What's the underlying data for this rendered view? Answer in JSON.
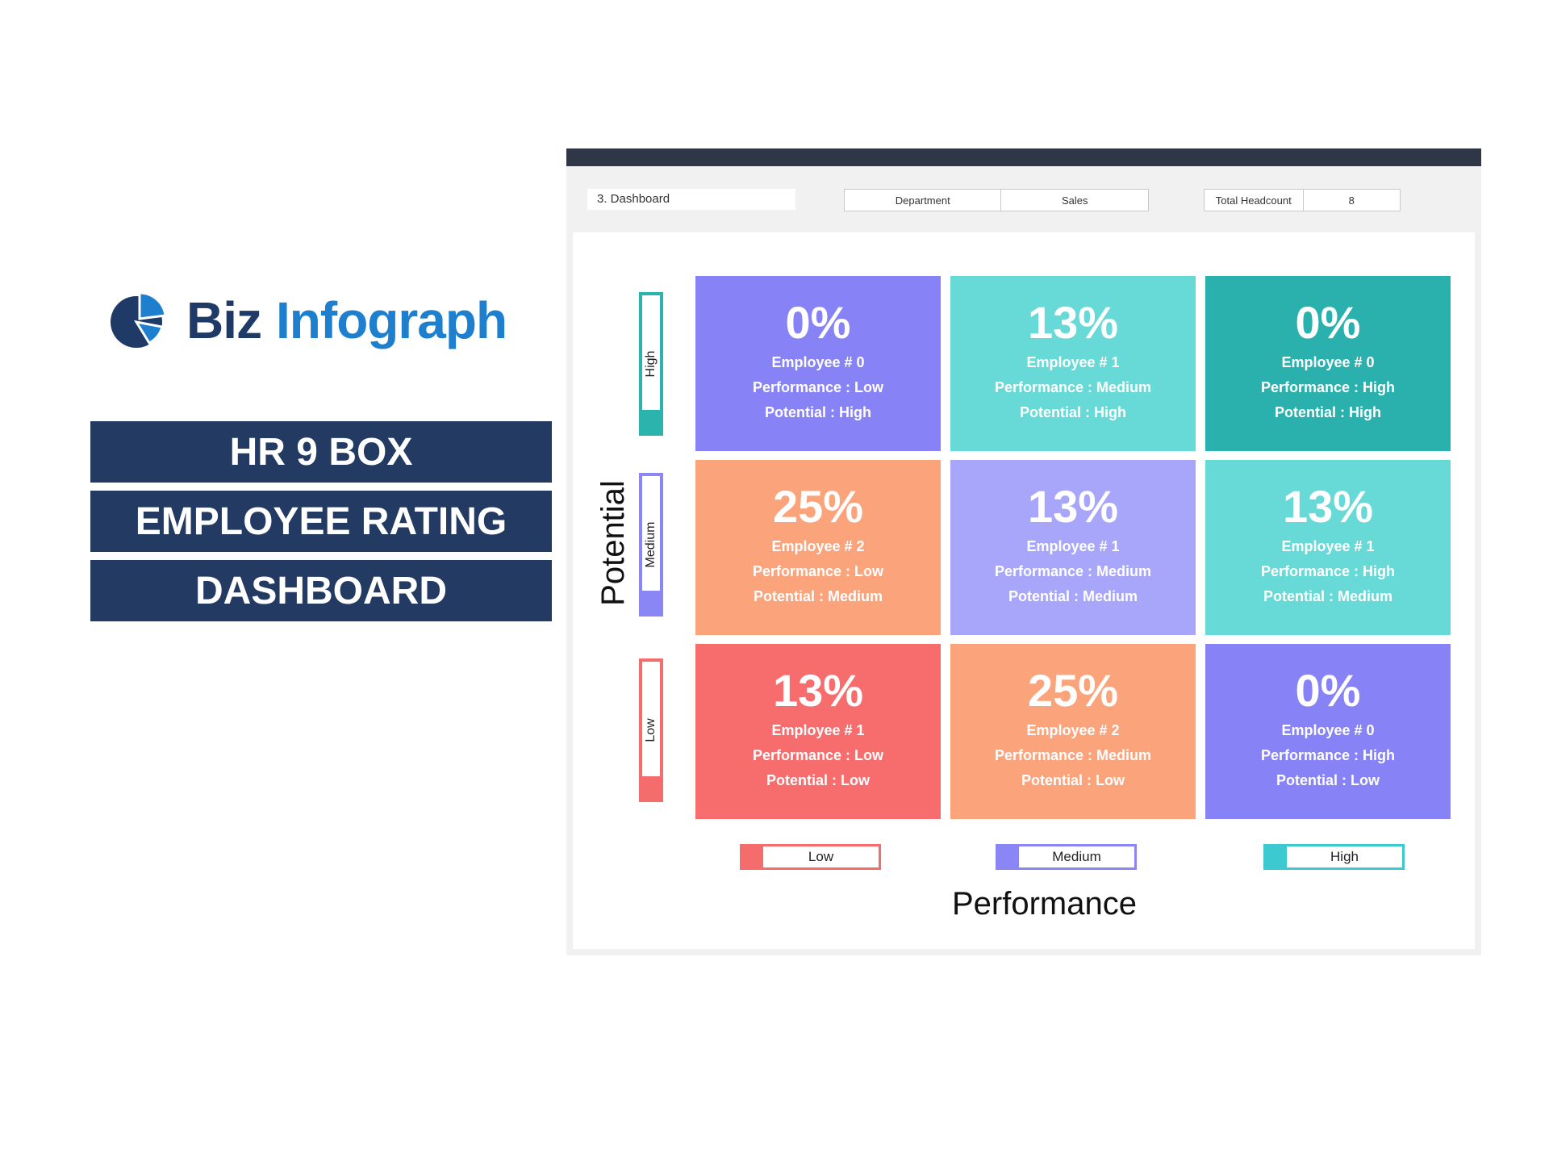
{
  "brand": {
    "name_part1": "Biz",
    "name_part2": "Infograph",
    "colors": {
      "dark": "#1f3a66",
      "accent": "#1e7fcf"
    }
  },
  "title_lines": [
    "HR 9 BOX",
    "EMPLOYEE RATING",
    "DASHBOARD"
  ],
  "dashboard": {
    "breadcrumb": "3. Dashboard",
    "department": {
      "label": "Department",
      "value": "Sales"
    },
    "headcount": {
      "label": "Total Headcount",
      "value": "8"
    },
    "y_axis_title": "Potential",
    "x_axis_title": "Performance",
    "potential_levels": [
      {
        "label": "High",
        "color": "#2bb3ad"
      },
      {
        "label": "Medium",
        "color": "#8a86f5"
      },
      {
        "label": "Low",
        "color": "#f46c6c"
      }
    ],
    "performance_levels": [
      {
        "label": "Low",
        "color": "#f46c6c"
      },
      {
        "label": "Medium",
        "color": "#8a86f5"
      },
      {
        "label": "High",
        "color": "#3cc9cf"
      }
    ],
    "cells": [
      {
        "pct": "0%",
        "employees": "Employee # 0",
        "performance": "Performance : Low",
        "potential": "Potential : High",
        "color": "#8783f7"
      },
      {
        "pct": "13%",
        "employees": "Employee # 1",
        "performance": "Performance : Medium",
        "potential": "Potential : High",
        "color": "#67d9d6"
      },
      {
        "pct": "0%",
        "employees": "Employee # 0",
        "performance": "Performance : High",
        "potential": "Potential : High",
        "color": "#2ab1ae"
      },
      {
        "pct": "25%",
        "employees": "Employee # 2",
        "performance": "Performance : Low",
        "potential": "Potential : Medium",
        "color": "#fba47c"
      },
      {
        "pct": "13%",
        "employees": "Employee # 1",
        "performance": "Performance : Medium",
        "potential": "Potential : Medium",
        "color": "#a8a6fa"
      },
      {
        "pct": "13%",
        "employees": "Employee # 1",
        "performance": "Performance : High",
        "potential": "Potential : Medium",
        "color": "#67d9d6"
      },
      {
        "pct": "13%",
        "employees": "Employee # 1",
        "performance": "Performance : Low",
        "potential": "Potential : Low",
        "color": "#f76c6c"
      },
      {
        "pct": "25%",
        "employees": "Employee # 2",
        "performance": "Performance : Medium",
        "potential": "Potential : Low",
        "color": "#fba47c"
      },
      {
        "pct": "0%",
        "employees": "Employee # 0",
        "performance": "Performance : High",
        "potential": "Potential : Low",
        "color": "#8783f7"
      }
    ]
  }
}
